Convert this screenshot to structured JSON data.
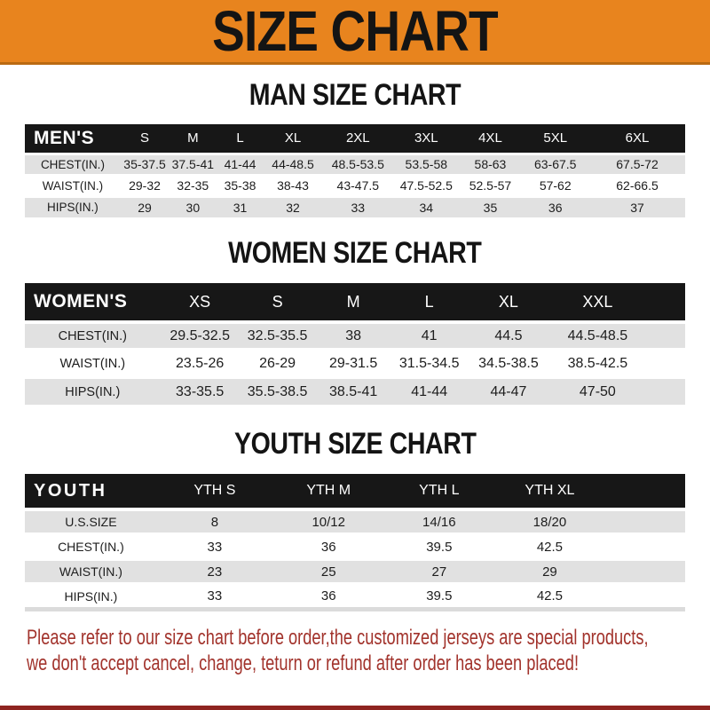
{
  "page": {
    "title": "SIZE CHART",
    "colors": {
      "banner_bg": "#E8841E",
      "banner_border": "#BA6A12",
      "table_header_bg": "#171717",
      "row_stripe": "#E1E1E1",
      "footer_text": "#A2332C",
      "footer_bar": "#8E2420"
    }
  },
  "sections": [
    {
      "id": "men",
      "heading": "MAN SIZE CHART",
      "table": {
        "header": [
          "MEN'S",
          "S",
          "M",
          "L",
          "XL",
          "2XL",
          "3XL",
          "4XL",
          "5XL",
          "6XL"
        ],
        "rows": [
          {
            "label": "CHEST(IN.)",
            "values": [
              "35-37.5",
              "37.5-41",
              "41-44",
              "44-48.5",
              "48.5-53.5",
              "53.5-58",
              "58-63",
              "63-67.5",
              "67.5-72"
            ]
          },
          {
            "label": "WAIST(IN.)",
            "values": [
              "29-32",
              "32-35",
              "35-38",
              "38-43",
              "43-47.5",
              "47.5-52.5",
              "52.5-57",
              "57-62",
              "62-66.5"
            ]
          },
          {
            "label": "HIPS(IN.)",
            "values": [
              "29",
              "30",
              "31",
              "32",
              "33",
              "34",
              "35",
              "36",
              "37"
            ]
          }
        ]
      }
    },
    {
      "id": "women",
      "heading": "WOMEN SIZE CHART",
      "table": {
        "header": [
          "WOMEN'S",
          "XS",
          "S",
          "M",
          "L",
          "XL",
          "XXL"
        ],
        "rows": [
          {
            "label": "CHEST(IN.)",
            "values": [
              "29.5-32.5",
              "32.5-35.5",
              "38",
              "41",
              "44.5",
              "44.5-48.5"
            ]
          },
          {
            "label": "WAIST(IN.)",
            "values": [
              "23.5-26",
              "26-29",
              "29-31.5",
              "31.5-34.5",
              "34.5-38.5",
              "38.5-42.5"
            ]
          },
          {
            "label": "HIPS(IN.)",
            "values": [
              "33-35.5",
              "35.5-38.5",
              "38.5-41",
              "41-44",
              "44-47",
              "47-50"
            ]
          }
        ]
      }
    },
    {
      "id": "youth",
      "heading": "YOUTH SIZE CHART",
      "table": {
        "header": [
          "YOUTH",
          "YTH S",
          "YTH M",
          "YTH L",
          "YTH XL"
        ],
        "rows": [
          {
            "label": "U.S.SIZE",
            "values": [
              "8",
              "10/12",
              "14/16",
              "18/20"
            ]
          },
          {
            "label": "CHEST(IN.)",
            "values": [
              "33",
              "36",
              "39.5",
              "42.5"
            ]
          },
          {
            "label": "WAIST(IN.)",
            "values": [
              "23",
              "25",
              "27",
              "29"
            ]
          },
          {
            "label": "HIPS(IN.)",
            "values": [
              "33",
              "36",
              "39.5",
              "42.5"
            ]
          }
        ]
      }
    }
  ],
  "footer": {
    "line1": "Please refer to our size chart before order,the customized jerseys are special products,",
    "line2": "we don't accept cancel, change, teturn or refund after order has been placed!"
  }
}
